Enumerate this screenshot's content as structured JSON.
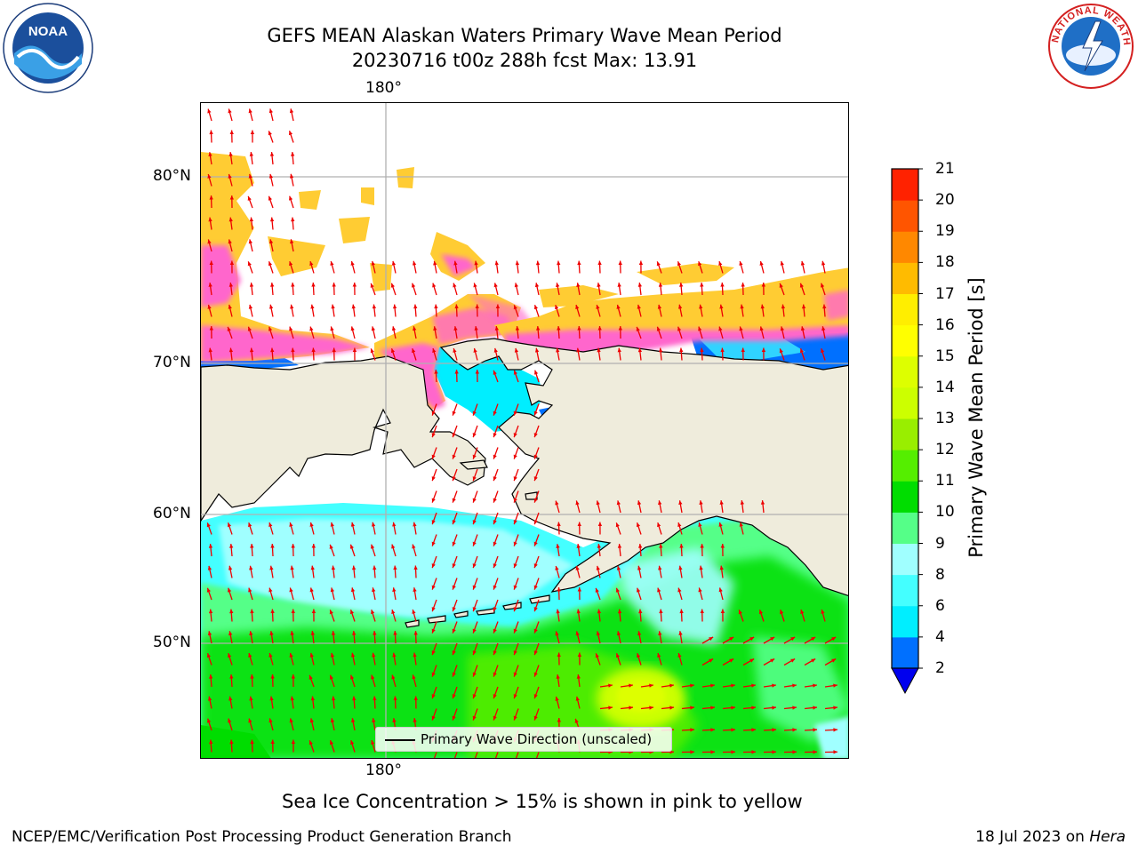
{
  "title": {
    "line1": "GEFS MEAN Alaskan Waters Primary Wave Mean Period",
    "line2": "20230716 t00z 288h fcst   Max: 13.91"
  },
  "map": {
    "lon_labels": [
      "180°",
      "180°"
    ],
    "lat_labels": [
      "80°N",
      "70°N",
      "60°N",
      "50°N"
    ],
    "legend_label": "Primary Wave Direction (unscaled)",
    "colors": {
      "land": "#efecdc",
      "ice_pink": "#ff66cc",
      "ice_yellow": "#ffcc33",
      "arrow": "#ee0000",
      "grid": "#b0b0b0"
    }
  },
  "colorbar": {
    "title": "Primary Wave Mean Period [s]",
    "ticks": [
      "2",
      "4",
      "6",
      "8",
      "9",
      "10",
      "11",
      "12",
      "13",
      "14",
      "15",
      "16",
      "17",
      "18",
      "19",
      "20",
      "21"
    ],
    "colors": [
      "#0070ff",
      "#00eeff",
      "#44ffff",
      "#a0ffff",
      "#55ff88",
      "#00dd00",
      "#55ee00",
      "#99ee00",
      "#ccff00",
      "#ddff00",
      "#ffff00",
      "#ffee00",
      "#ffbb00",
      "#ff8800",
      "#ff5500",
      "#ff2200"
    ],
    "under_color": "#0000ee"
  },
  "notes": {
    "ice": "Sea Ice Concentration > 15% is shown in pink to yellow"
  },
  "footer": {
    "left": "NCEP/EMC/Verification Post Processing Product Generation Branch",
    "date": "18 Jul 2023 on",
    "host": "Hera"
  },
  "logos": {
    "noaa_text": "NOAA",
    "nws_text": "NATIONAL WEATHER SERVICE"
  }
}
